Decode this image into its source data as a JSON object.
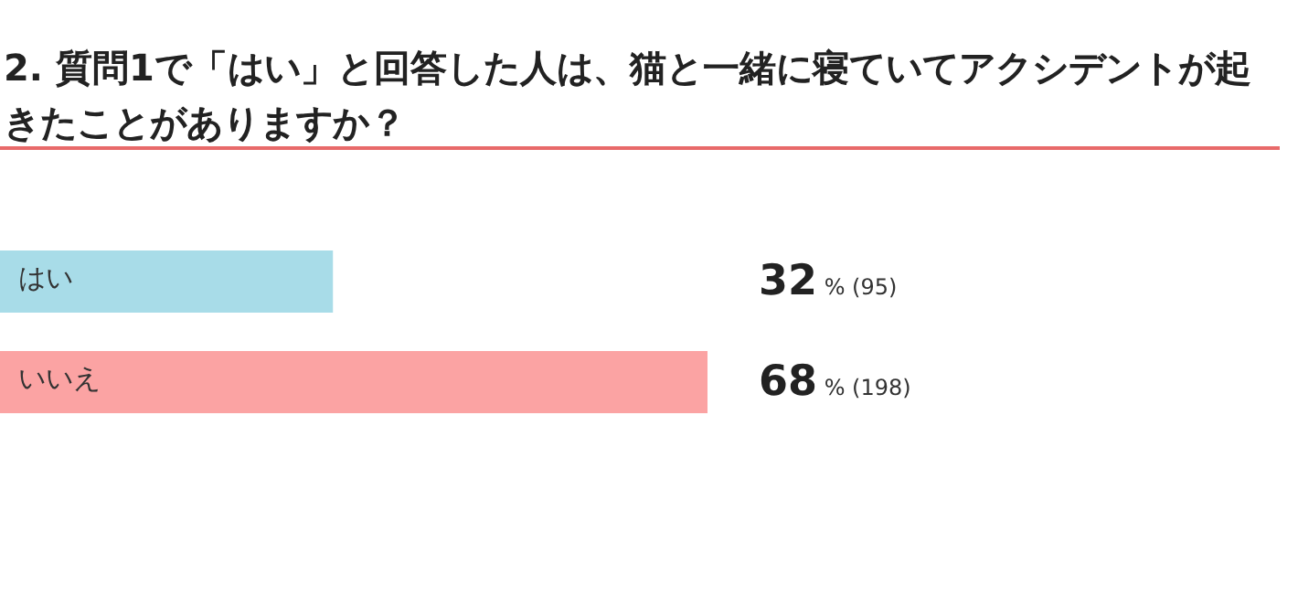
{
  "chart_data": {
    "type": "bar",
    "orientation": "horizontal",
    "title": "2. 質問1で「はい」と回答した人は、猫と一緒に寝ていてアクシデントが起きたことがありますか？",
    "categories": [
      "はい",
      "いいえ"
    ],
    "values": [
      32,
      68
    ],
    "colors": [
      "#a8dce8",
      "#fba3a3"
    ],
    "value_labels": [
      "**32**% (95)",
      "**68**% (198)"
    ]
  }
}
